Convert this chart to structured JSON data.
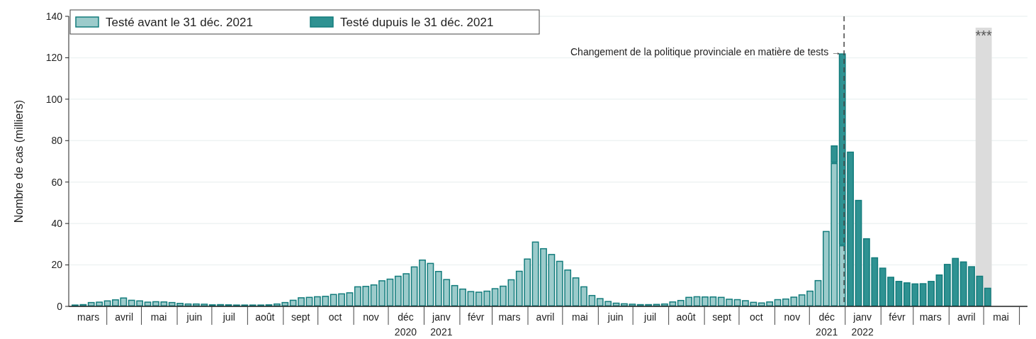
{
  "chart_data": {
    "type": "bar",
    "stacked": true,
    "ylabel": "Nombre de cas (milliers)",
    "x": [
      "2020-03-01",
      "2020-03-08",
      "2020-03-15",
      "2020-03-22",
      "2020-03-29",
      "2020-04-05",
      "2020-04-12",
      "2020-04-19",
      "2020-04-26",
      "2020-05-03",
      "2020-05-10",
      "2020-05-17",
      "2020-05-24",
      "2020-05-31",
      "2020-06-07",
      "2020-06-14",
      "2020-06-21",
      "2020-06-28",
      "2020-07-05",
      "2020-07-12",
      "2020-07-19",
      "2020-07-26",
      "2020-08-02",
      "2020-08-09",
      "2020-08-16",
      "2020-08-23",
      "2020-08-30",
      "2020-09-06",
      "2020-09-13",
      "2020-09-20",
      "2020-09-27",
      "2020-10-04",
      "2020-10-11",
      "2020-10-18",
      "2020-10-25",
      "2020-11-01",
      "2020-11-08",
      "2020-11-15",
      "2020-11-22",
      "2020-11-29",
      "2020-12-06",
      "2020-12-13",
      "2020-12-20",
      "2020-12-27",
      "2021-01-03",
      "2021-01-10",
      "2021-01-17",
      "2021-01-24",
      "2021-01-31",
      "2021-02-07",
      "2021-02-14",
      "2021-02-21",
      "2021-02-28",
      "2021-03-07",
      "2021-03-14",
      "2021-03-21",
      "2021-03-28",
      "2021-04-04",
      "2021-04-11",
      "2021-04-18",
      "2021-04-25",
      "2021-05-02",
      "2021-05-09",
      "2021-05-16",
      "2021-05-23",
      "2021-05-30",
      "2021-06-06",
      "2021-06-13",
      "2021-06-20",
      "2021-06-27",
      "2021-07-04",
      "2021-07-11",
      "2021-07-18",
      "2021-07-25",
      "2021-08-01",
      "2021-08-08",
      "2021-08-15",
      "2021-08-22",
      "2021-08-29",
      "2021-09-05",
      "2021-09-12",
      "2021-09-19",
      "2021-09-26",
      "2021-10-03",
      "2021-10-10",
      "2021-10-17",
      "2021-10-24",
      "2021-10-31",
      "2021-11-07",
      "2021-11-14",
      "2021-11-21",
      "2021-11-28",
      "2021-12-05",
      "2021-12-12",
      "2021-12-19",
      "2021-12-26",
      "2022-01-02",
      "2022-01-09",
      "2022-01-16",
      "2022-01-23",
      "2022-01-30",
      "2022-02-06",
      "2022-02-13",
      "2022-02-20",
      "2022-02-27",
      "2022-03-06",
      "2022-03-13",
      "2022-03-20",
      "2022-03-27",
      "2022-04-03",
      "2022-04-10",
      "2022-04-17",
      "2022-04-24",
      "2022-05-01"
    ],
    "series": [
      {
        "name": "Testé avant le 31 déc. 2021",
        "color": "#9ccbcb",
        "values": [
          0.9,
          1.1,
          2.1,
          2.3,
          2.9,
          3.4,
          4.3,
          3.2,
          2.9,
          2.3,
          2.5,
          2.4,
          2.1,
          1.7,
          1.4,
          1.4,
          1.3,
          1.0,
          1.1,
          1.0,
          0.9,
          0.9,
          0.9,
          0.9,
          1.0,
          1.4,
          2.1,
          3.2,
          4.4,
          4.6,
          4.9,
          5.1,
          6.0,
          6.3,
          6.8,
          9.7,
          9.9,
          10.6,
          12.6,
          13.4,
          14.8,
          16.0,
          19.3,
          22.6,
          21.0,
          17.1,
          13.2,
          10.3,
          8.6,
          7.4,
          7.1,
          7.6,
          8.8,
          10.0,
          13.1,
          17.2,
          23.1,
          31.3,
          28.1,
          25.3,
          22.0,
          17.8,
          14.0,
          9.7,
          5.5,
          4.0,
          2.6,
          1.8,
          1.5,
          1.3,
          1.1,
          1.1,
          1.2,
          1.4,
          2.4,
          3.1,
          4.6,
          4.9,
          4.8,
          4.8,
          4.6,
          3.7,
          3.5,
          3.0,
          2.2,
          1.9,
          2.4,
          3.5,
          3.8,
          4.7,
          5.8,
          7.6,
          12.7,
          36.4,
          69.2,
          29.5,
          null,
          null,
          null,
          null,
          null,
          null,
          null,
          null,
          null,
          null,
          null,
          null,
          null,
          null,
          null,
          null,
          null,
          null
        ]
      },
      {
        "name": "Testé dupuis le 31 déc. 2021",
        "color": "#2f9292",
        "values": [
          null,
          null,
          null,
          null,
          null,
          null,
          null,
          null,
          null,
          null,
          null,
          null,
          null,
          null,
          null,
          null,
          null,
          null,
          null,
          null,
          null,
          null,
          null,
          null,
          null,
          null,
          null,
          null,
          null,
          null,
          null,
          null,
          null,
          null,
          null,
          null,
          null,
          null,
          null,
          null,
          null,
          null,
          null,
          null,
          null,
          null,
          null,
          null,
          null,
          null,
          null,
          null,
          null,
          null,
          null,
          null,
          null,
          null,
          null,
          null,
          null,
          null,
          null,
          null,
          null,
          null,
          null,
          null,
          null,
          null,
          null,
          null,
          null,
          null,
          null,
          null,
          null,
          null,
          null,
          null,
          null,
          null,
          null,
          null,
          null,
          null,
          null,
          null,
          null,
          null,
          null,
          null,
          null,
          null,
          8.5,
          92.6,
          74.7,
          51.4,
          32.9,
          23.7,
          18.7,
          14.3,
          12.3,
          11.6,
          11.1,
          11.2,
          12.3,
          15.4,
          20.5,
          23.4,
          21.7,
          19.4,
          14.8,
          9.0
        ]
      }
    ],
    "xlim": [
      "2020-02-28",
      "2022-06-08"
    ],
    "xticks": [
      {
        "value": "2020-03-16",
        "label": "mars"
      },
      {
        "value": "2020-04-01",
        "label": null
      },
      {
        "value": "2020-04-16",
        "label": "avril"
      },
      {
        "value": "2020-05-01",
        "label": null
      },
      {
        "value": "2020-05-16",
        "label": "mai"
      },
      {
        "value": "2020-06-01",
        "label": null
      },
      {
        "value": "2020-06-16",
        "label": "juin"
      },
      {
        "value": "2020-07-01",
        "label": null
      },
      {
        "value": "2020-07-16",
        "label": "juil"
      },
      {
        "value": "2020-08-01",
        "label": null
      },
      {
        "value": "2020-08-16",
        "label": "août"
      },
      {
        "value": "2020-09-01",
        "label": null
      },
      {
        "value": "2020-09-16",
        "label": "sept"
      },
      {
        "value": "2020-10-01",
        "label": null
      },
      {
        "value": "2020-10-16",
        "label": "oct"
      },
      {
        "value": "2020-11-01",
        "label": null
      },
      {
        "value": "2020-11-16",
        "label": "nov"
      },
      {
        "value": "2020-12-01",
        "label": null
      },
      {
        "value": "2020-12-16",
        "label": "déc\n2020"
      },
      {
        "value": "2021-01-01",
        "label": null
      },
      {
        "value": "2021-01-16",
        "label": "janv\n2021"
      },
      {
        "value": "2021-02-01",
        "label": null
      },
      {
        "value": "2021-02-15",
        "label": "févr"
      },
      {
        "value": "2021-03-01",
        "label": null
      },
      {
        "value": "2021-03-16",
        "label": "mars"
      },
      {
        "value": "2021-04-01",
        "label": null
      },
      {
        "value": "2021-04-16",
        "label": "avril"
      },
      {
        "value": "2021-05-01",
        "label": null
      },
      {
        "value": "2021-05-16",
        "label": "mai"
      },
      {
        "value": "2021-06-01",
        "label": null
      },
      {
        "value": "2021-06-16",
        "label": "juin"
      },
      {
        "value": "2021-07-01",
        "label": null
      },
      {
        "value": "2021-07-16",
        "label": "juil"
      },
      {
        "value": "2021-08-01",
        "label": null
      },
      {
        "value": "2021-08-16",
        "label": "août"
      },
      {
        "value": "2021-09-01",
        "label": null
      },
      {
        "value": "2021-09-16",
        "label": "sept"
      },
      {
        "value": "2021-10-01",
        "label": null
      },
      {
        "value": "2021-10-16",
        "label": "oct"
      },
      {
        "value": "2021-11-01",
        "label": null
      },
      {
        "value": "2021-11-16",
        "label": "nov"
      },
      {
        "value": "2021-12-01",
        "label": null
      },
      {
        "value": "2021-12-16",
        "label": "déc\n2021"
      },
      {
        "value": "2022-01-01",
        "label": null
      },
      {
        "value": "2022-01-16",
        "label": "janv\n2022"
      },
      {
        "value": "2022-02-01",
        "label": null
      },
      {
        "value": "2022-02-15",
        "label": "févr"
      },
      {
        "value": "2022-03-01",
        "label": null
      },
      {
        "value": "2022-03-16",
        "label": "mars"
      },
      {
        "value": "2022-04-01",
        "label": null
      },
      {
        "value": "2022-04-16",
        "label": "avril"
      },
      {
        "value": "2022-05-01",
        "label": null
      },
      {
        "value": "2022-05-16",
        "label": "mai"
      },
      {
        "value": "2022-06-01",
        "label": null
      }
    ],
    "ylim": [
      0,
      140
    ],
    "yticks": [
      0,
      20,
      40,
      60,
      80,
      100,
      120,
      140
    ],
    "grid": "y",
    "legend": "top left",
    "ref_lines": [
      {
        "axis": "x",
        "value": "2021-12-31",
        "label": "Changement de la politique provinciale en matière de tests →",
        "line_style": "dashed",
        "color": "#444444"
      }
    ],
    "bands": [
      {
        "axis": "x",
        "from": "2022-04-24",
        "to": "2022-05-08",
        "label": "***",
        "color": "#dcdcdc"
      }
    ]
  }
}
